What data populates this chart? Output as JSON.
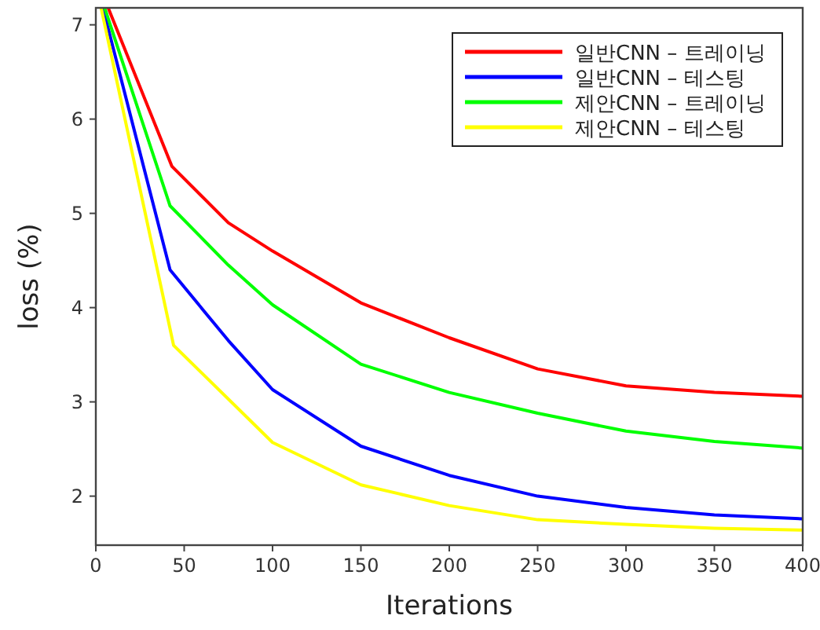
{
  "chart_data": {
    "type": "line",
    "xlabel": "Iterations",
    "ylabel": "loss (%)",
    "xlim": [
      0,
      400
    ],
    "ylim": [
      1.48,
      7.18
    ],
    "xticks": [
      0,
      50,
      100,
      150,
      200,
      250,
      300,
      350,
      400
    ],
    "yticks": [
      2,
      3,
      4,
      5,
      6,
      7
    ],
    "grid": false,
    "legend": "top right",
    "line_style": "solid",
    "marker": "none",
    "series": [
      {
        "name": "일반CNN – 트레이닝",
        "color": "#ff0000",
        "x": [
          7,
          43,
          75,
          100,
          150,
          200,
          250,
          300,
          350,
          400
        ],
        "values": [
          7.18,
          5.5,
          4.9,
          4.6,
          4.05,
          3.68,
          3.35,
          3.17,
          3.1,
          3.06
        ]
      },
      {
        "name": "일반CNN – 테스팅",
        "color": "#0000ff",
        "x": [
          4,
          42,
          75,
          100,
          150,
          200,
          250,
          300,
          350,
          400
        ],
        "values": [
          7.18,
          4.4,
          3.65,
          3.13,
          2.53,
          2.22,
          2.0,
          1.88,
          1.8,
          1.76
        ]
      },
      {
        "name": "제안CNN – 트레이닝",
        "color": "#00ff00",
        "x": [
          5,
          42,
          75,
          100,
          150,
          200,
          250,
          300,
          350,
          400
        ],
        "values": [
          7.18,
          5.08,
          4.45,
          4.03,
          3.4,
          3.1,
          2.88,
          2.69,
          2.58,
          2.51
        ]
      },
      {
        "name": "제안CNN – 테스팅",
        "color": "#ffff00",
        "x": [
          3,
          44,
          100,
          150,
          200,
          250,
          300,
          350,
          400
        ],
        "values": [
          7.18,
          3.6,
          2.57,
          2.12,
          1.9,
          1.75,
          1.7,
          1.66,
          1.64
        ]
      }
    ]
  }
}
